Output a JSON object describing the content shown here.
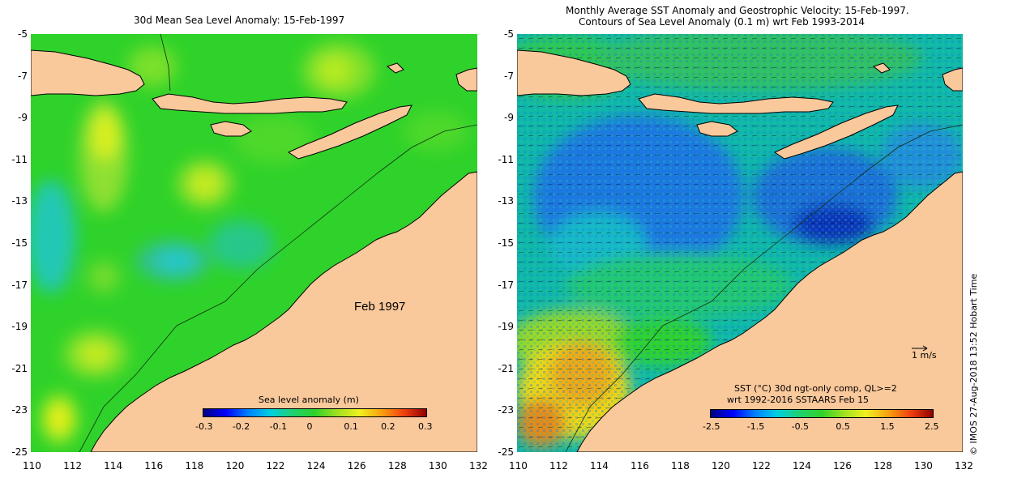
{
  "left_panel": {
    "title": "30d Mean Sea Level Anomaly: 15-Feb-1997",
    "date_label": "Feb 1997",
    "colorbar": {
      "label": "Sea level anomaly (m)",
      "ticks": [
        "-0.3",
        "-0.2",
        "-0.1",
        "0",
        "0.1",
        "0.2",
        "0.3"
      ]
    }
  },
  "right_panel": {
    "title_line1": "Monthly Average SST Anomaly  and Geostrophic Velocity: 15-Feb-1997.",
    "title_line2": "Contours of Sea Level Anomaly (0.1 m) wrt Feb 1993-2014",
    "velocity_scale_label": "1 m/s",
    "legend_line1": "SST (°C) 30d ngt-only comp, QL>=2",
    "legend_line2": "wrt 1992-2016 SSTAARS Feb 15",
    "colorbar": {
      "ticks": [
        "-2.5",
        "-1.5",
        "-0.5",
        "0.5",
        "1.5",
        "2.5"
      ]
    }
  },
  "axes": {
    "x_ticks": [
      "110",
      "112",
      "114",
      "116",
      "118",
      "120",
      "122",
      "124",
      "126",
      "128",
      "130",
      "132"
    ],
    "y_ticks": [
      "-5",
      "-7",
      "-9",
      "-11",
      "-13",
      "-15",
      "-17",
      "-19",
      "-21",
      "-23",
      "-25"
    ]
  },
  "credit": "© IMOS 27-Aug-2018 13:52 Hobart Time",
  "colors": {
    "land": "#f9c89b",
    "ocean_base": "#2fd22a",
    "coast": "#000000"
  }
}
